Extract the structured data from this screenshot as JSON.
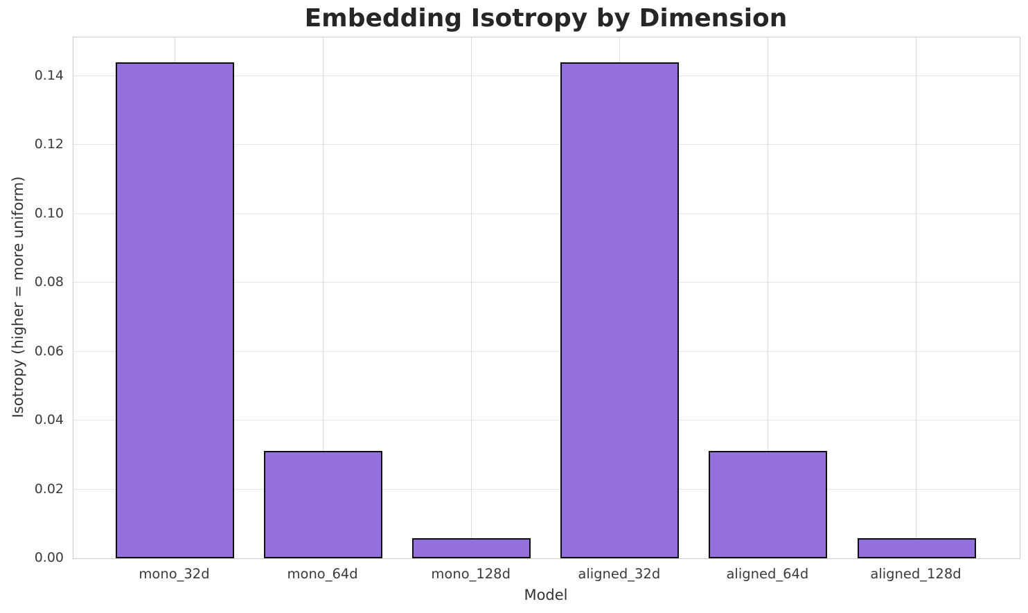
{
  "chart_data": {
    "type": "bar",
    "title": "Embedding Isotropy by Dimension",
    "xlabel": "Model",
    "ylabel": "Isotropy (higher = more uniform)",
    "categories": [
      "mono_32d",
      "mono_64d",
      "mono_128d",
      "aligned_32d",
      "aligned_64d",
      "aligned_128d"
    ],
    "values": [
      0.1438,
      0.031,
      0.0055,
      0.1438,
      0.031,
      0.0055
    ],
    "ytick_values": [
      0.0,
      0.02,
      0.04,
      0.06,
      0.08,
      0.1,
      0.12,
      0.14
    ],
    "ytick_labels": [
      "0.00",
      "0.02",
      "0.04",
      "0.06",
      "0.08",
      "0.10",
      "0.12",
      "0.14"
    ],
    "ylim": [
      0,
      0.1512
    ],
    "grid": true,
    "legend_position": "none",
    "colors": {
      "bar_fill": "#9370DB",
      "bar_edge": "#0d0d0d",
      "grid_horizontal": "#e4e4e4",
      "grid_vertical": "#dcdcdc",
      "spine": "#cbcbcb",
      "title_text": "#262626",
      "tick_text": "#3a3a3a",
      "background": "#ffffff"
    }
  }
}
